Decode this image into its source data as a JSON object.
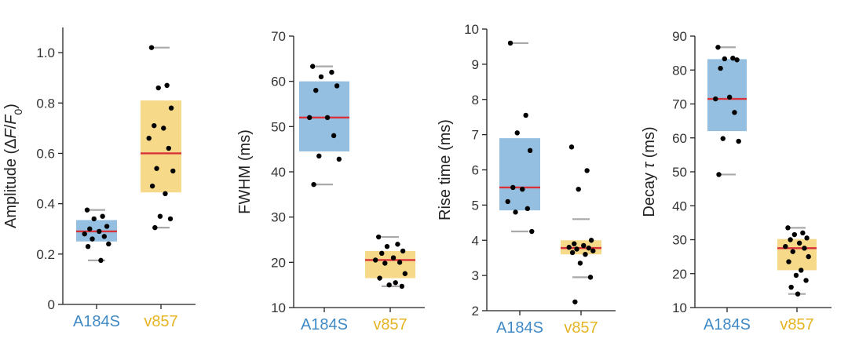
{
  "colors": {
    "A184S_fill": "#94bfe0",
    "v857_fill": "#f7d98a",
    "A184S_text": "#3f8ac6",
    "v857_text": "#e5b423",
    "median": "#d8333a",
    "whisker": "#a9a9a9",
    "point": "#000000"
  },
  "chart_data": [
    {
      "type": "box",
      "ylabel_parts": [
        "Amplitude (",
        "Δ",
        "F",
        "/",
        "F",
        "0",
        ")"
      ],
      "ylim": [
        0,
        1.1
      ],
      "yticks": [
        0,
        0.2,
        0.4,
        0.6,
        0.8,
        1.0
      ],
      "ytick_labels": [
        "0",
        "0.2",
        "0.4",
        "0.6",
        "0.8",
        "1.0"
      ],
      "categories": [
        "A184S",
        "v857"
      ],
      "series": [
        {
          "name": "A184S",
          "q1": 0.25,
          "median": 0.29,
          "q3": 0.335,
          "min": 0.175,
          "max": 0.375,
          "points": [
            0.375,
            0.35,
            0.34,
            0.31,
            0.3,
            0.29,
            0.28,
            0.27,
            0.26,
            0.24,
            0.23,
            0.175
          ]
        },
        {
          "name": "v857",
          "q1": 0.445,
          "median": 0.6,
          "q3": 0.81,
          "min": 0.305,
          "max": 1.02,
          "points": [
            1.02,
            0.87,
            0.86,
            0.78,
            0.71,
            0.7,
            0.66,
            0.62,
            0.54,
            0.53,
            0.47,
            0.44,
            0.35,
            0.34,
            0.305
          ]
        }
      ]
    },
    {
      "type": "box",
      "ylabel": "FWHM (ms)",
      "ylim": [
        10,
        70
      ],
      "yticks": [
        10,
        20,
        30,
        40,
        50,
        60,
        70
      ],
      "ytick_labels": [
        "10",
        "20",
        "30",
        "40",
        "50",
        "60",
        "70"
      ],
      "categories": [
        "A184S",
        "v857"
      ],
      "series": [
        {
          "name": "A184S",
          "q1": 44.5,
          "median": 52,
          "q3": 60,
          "min": 37.2,
          "max": 63.3,
          "points": [
            63.3,
            62,
            61,
            59,
            58,
            52,
            52,
            48,
            43.5,
            42.8,
            37.2
          ]
        },
        {
          "name": "v857",
          "q1": 16.5,
          "median": 20.5,
          "q3": 22.5,
          "min": 14.7,
          "max": 25.6,
          "points": [
            25.6,
            24,
            23.5,
            22.5,
            22,
            21,
            20.5,
            20,
            19.8,
            17.5,
            16.5,
            15.5,
            15,
            14.7
          ]
        }
      ]
    },
    {
      "type": "box",
      "ylabel": "Rise time (ms)",
      "ylim": [
        2,
        10
      ],
      "yticks": [
        2,
        3,
        4,
        5,
        6,
        7,
        8,
        9,
        10
      ],
      "ytick_labels": [
        "2",
        "3",
        "4",
        "5",
        "6",
        "7",
        "8",
        "9",
        "10"
      ],
      "categories": [
        "A184S",
        "v857"
      ],
      "series": [
        {
          "name": "A184S",
          "q1": 4.85,
          "median": 5.5,
          "q3": 6.9,
          "min": 4.25,
          "max": 9.6,
          "points": [
            9.6,
            7.55,
            7.05,
            6.55,
            5.5,
            5.45,
            5.1,
            4.9,
            4.8,
            4.25
          ]
        },
        {
          "name": "v857",
          "q1": 3.6,
          "median": 3.78,
          "q3": 4.0,
          "min": 2.95,
          "max": 4.6,
          "points": [
            6.65,
            5.98,
            5.45,
            4.0,
            3.9,
            3.85,
            3.8,
            3.78,
            3.75,
            3.7,
            3.65,
            3.6,
            3.35,
            2.95,
            2.25
          ]
        }
      ]
    },
    {
      "type": "box",
      "ylabel_parts": [
        "Decay ",
        "τ",
        " (ms)"
      ],
      "ylim": [
        10,
        90
      ],
      "yticks": [
        10,
        20,
        30,
        40,
        50,
        60,
        70,
        80,
        90
      ],
      "ytick_labels": [
        "10",
        "20",
        "30",
        "40",
        "50",
        "60",
        "70",
        "80",
        "90"
      ],
      "categories": [
        "A184S",
        "v857"
      ],
      "series": [
        {
          "name": "A184S",
          "q1": 62,
          "median": 71.5,
          "q3": 83.2,
          "min": 49.2,
          "max": 86.7,
          "points": [
            86.7,
            83.5,
            83.3,
            83,
            80.5,
            72,
            71.5,
            67.5,
            59.8,
            59,
            49.2
          ]
        },
        {
          "name": "v857",
          "q1": 21,
          "median": 27.5,
          "q3": 30.2,
          "min": 14,
          "max": 33.5,
          "points": [
            33.5,
            32,
            31.5,
            30.5,
            30,
            29,
            28,
            27.5,
            26.5,
            25,
            23.5,
            21,
            19.5,
            18,
            16,
            14
          ]
        }
      ]
    }
  ]
}
